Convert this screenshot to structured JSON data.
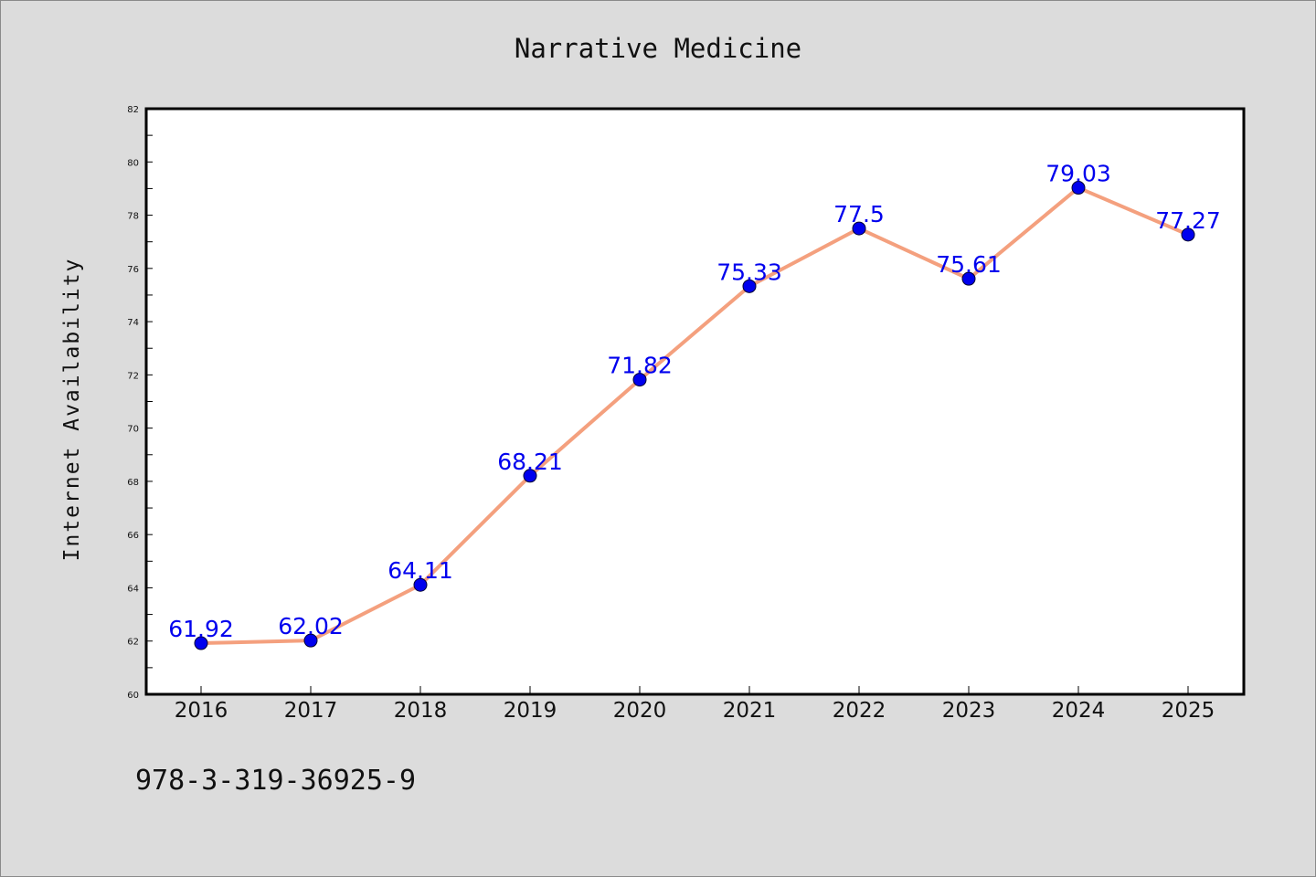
{
  "chart_data": {
    "type": "line",
    "title": "Narrative Medicine",
    "xlabel": "",
    "ylabel": "Internet Availability",
    "categories": [
      "2016",
      "2017",
      "2018",
      "2019",
      "2020",
      "2021",
      "2022",
      "2023",
      "2024",
      "2025"
    ],
    "series": [
      {
        "values": [
          61.92,
          62.02,
          64.11,
          68.21,
          71.82,
          75.33,
          77.5,
          75.61,
          79.03,
          77.27
        ],
        "data_labels": [
          "61.92",
          "62.02",
          "64.11",
          "68.21",
          "71.82",
          "75.33",
          "77.5",
          "75.61",
          "79.03",
          "77.27"
        ]
      }
    ],
    "ylim": [
      60,
      82
    ],
    "yticks": [
      "60",
      "62",
      "64",
      "66",
      "68",
      "70",
      "72",
      "74",
      "76",
      "78",
      "80",
      "82"
    ],
    "grid": false,
    "legend": "none",
    "colors": {
      "line": "#f4a07e",
      "marker": "#0000ee",
      "marker_edge": "#000033",
      "data_label": "#0000ee",
      "plot_background": "#ffffff",
      "page_background": "#dcdcdc"
    }
  },
  "footnote": "978-3-319-36925-9"
}
